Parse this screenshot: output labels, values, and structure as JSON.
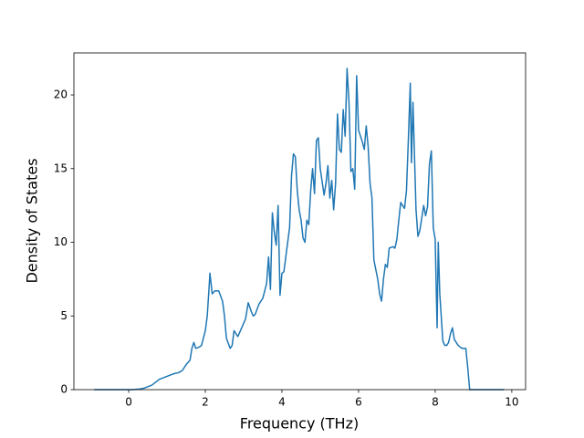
{
  "chart_data": {
    "type": "line",
    "x_label": "Frequency (THz)",
    "y_label": "Density of States",
    "x": [
      -0.9,
      0,
      0.1,
      0.2,
      0.3,
      0.4,
      0.5,
      0.6,
      0.7,
      0.8,
      0.9,
      1.0,
      1.1,
      1.2,
      1.3,
      1.4,
      1.5,
      1.6,
      1.65,
      1.7,
      1.75,
      1.85,
      1.9,
      2.0,
      2.05,
      2.1,
      2.12,
      2.18,
      2.25,
      2.35,
      2.45,
      2.5,
      2.55,
      2.62,
      2.65,
      2.7,
      2.75,
      2.85,
      2.95,
      3.05,
      3.12,
      3.2,
      3.25,
      3.3,
      3.4,
      3.5,
      3.6,
      3.65,
      3.7,
      3.75,
      3.8,
      3.85,
      3.9,
      3.95,
      4.0,
      4.05,
      4.1,
      4.2,
      4.25,
      4.3,
      4.35,
      4.4,
      4.45,
      4.5,
      4.55,
      4.6,
      4.65,
      4.7,
      4.75,
      4.8,
      4.85,
      4.9,
      4.95,
      5.0,
      5.1,
      5.15,
      5.2,
      5.25,
      5.3,
      5.35,
      5.4,
      5.45,
      5.5,
      5.55,
      5.6,
      5.65,
      5.7,
      5.75,
      5.8,
      5.85,
      5.9,
      5.95,
      6.0,
      6.1,
      6.15,
      6.2,
      6.25,
      6.3,
      6.35,
      6.4,
      6.5,
      6.55,
      6.6,
      6.65,
      6.7,
      6.75,
      6.8,
      6.9,
      6.95,
      7.0,
      7.05,
      7.1,
      7.2,
      7.25,
      7.3,
      7.35,
      7.38,
      7.42,
      7.5,
      7.55,
      7.6,
      7.7,
      7.75,
      7.8,
      7.85,
      7.9,
      7.95,
      8.0,
      8.05,
      8.08,
      8.12,
      8.2,
      8.25,
      8.3,
      8.35,
      8.4,
      8.45,
      8.5,
      8.6,
      8.7,
      8.8,
      8.85,
      8.9,
      9.0,
      9.8
    ],
    "series": [
      {
        "color": "#1f77b4",
        "values": [
          0,
          0,
          0,
          0.02,
          0.05,
          0.1,
          0.2,
          0.3,
          0.5,
          0.7,
          0.8,
          0.9,
          1.0,
          1.1,
          1.15,
          1.3,
          1.7,
          2.0,
          2.8,
          3.2,
          2.8,
          2.9,
          3.0,
          4.0,
          5.0,
          7.0,
          7.9,
          6.5,
          6.7,
          6.7,
          6.0,
          5.0,
          3.5,
          3.0,
          2.8,
          3.0,
          4.0,
          3.6,
          4.2,
          4.8,
          5.9,
          5.3,
          5.0,
          5.1,
          5.8,
          6.2,
          7.2,
          9.0,
          6.8,
          12.0,
          10.7,
          9.8,
          12.5,
          6.4,
          7.9,
          8.0,
          9.0,
          11.0,
          14.5,
          16.0,
          15.8,
          13.5,
          12.2,
          11.5,
          10.3,
          10.0,
          11.5,
          11.2,
          13.5,
          15.0,
          13.3,
          16.9,
          17.1,
          15.0,
          13.2,
          14.0,
          15.2,
          13.0,
          14.2,
          12.2,
          14.0,
          18.7,
          16.3,
          16.1,
          19.0,
          17.2,
          21.8,
          19.5,
          14.8,
          15.0,
          13.6,
          21.3,
          17.6,
          16.8,
          16.3,
          17.9,
          16.5,
          14.0,
          13.0,
          8.8,
          7.5,
          6.5,
          6.0,
          7.5,
          8.5,
          8.3,
          9.6,
          9.7,
          9.6,
          10.2,
          11.5,
          12.7,
          12.3,
          13.5,
          17.0,
          20.8,
          15.4,
          19.5,
          12.2,
          10.4,
          10.8,
          12.5,
          11.8,
          12.4,
          15.3,
          16.2,
          11.0,
          10.2,
          4.2,
          10.0,
          6.5,
          3.3,
          3.0,
          3.0,
          3.2,
          3.8,
          4.2,
          3.4,
          3.0,
          2.8,
          2.8,
          1.5,
          0,
          0,
          0
        ]
      }
    ],
    "xlim": [
      -1.43,
      10.36
    ],
    "ylim": [
      0,
      22.85
    ],
    "xticks": [
      0,
      2,
      4,
      6,
      8,
      10
    ],
    "yticks": [
      0,
      5,
      10,
      15,
      20
    ]
  }
}
